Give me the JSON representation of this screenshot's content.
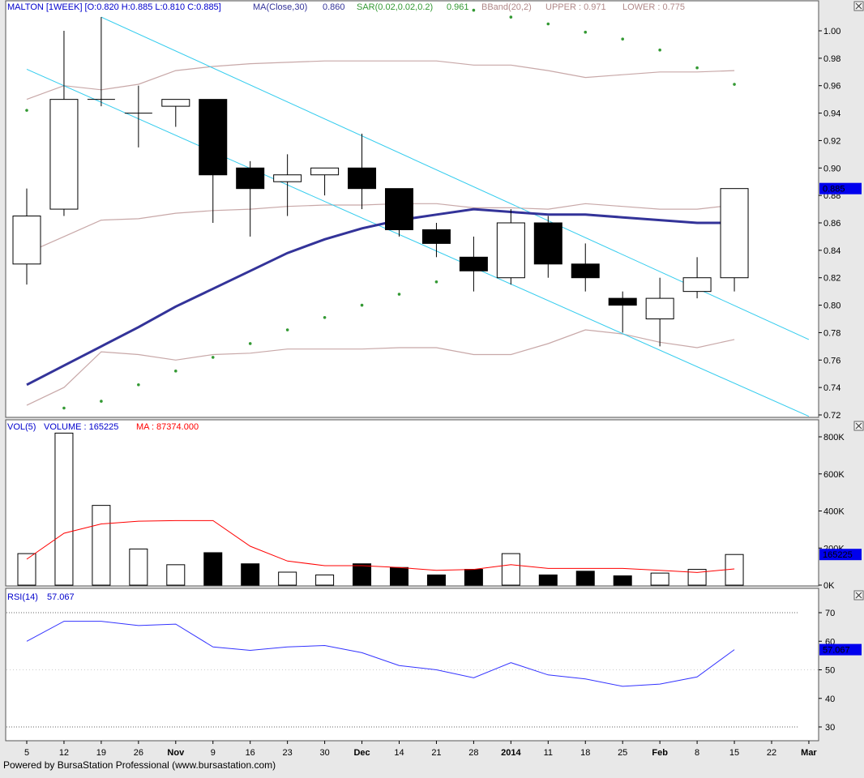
{
  "colors": {
    "background": "#e8e8e8",
    "panel": "#ffffff",
    "bullish_body": "#ffffff",
    "bearish_body": "#000000",
    "ma_line": "#333399",
    "bband_line": "#c8a8a8",
    "sar_dot": "#339933",
    "trendline": "#33ccee",
    "volume_ma": "#ff0000",
    "rsi_line": "#3333ff",
    "price_tag": "#0000ee"
  },
  "header": {
    "price_label": "MALTON [1WEEK] [O:0.820 H:0.885 L:0.810 C:0.885]",
    "ma_label": "MA(Close,30)",
    "ma_value": "0.860",
    "sar_label": "SAR(0.02,0.02,0.2)",
    "sar_value": "0.961",
    "bband_label": "BBand(20,2)",
    "upper_label": "UPPER : 0.971",
    "lower_label": "LOWER : 0.775",
    "vol_label": "VOL(5)",
    "volume_label": "VOLUME : 165225",
    "vol_ma_label": "MA : 87374.000",
    "rsi_label": "RSI(14)",
    "rsi_value": "57.067"
  },
  "footer": "Powered by BursaStation Professional (www.bursastation.com)",
  "chart_data": [
    {
      "type": "candlestick",
      "title": "MALTON [1WEEK]",
      "x_tick_labels": [
        "5",
        "12",
        "19",
        "26",
        "Nov",
        "9",
        "16",
        "23",
        "30",
        "Dec",
        "14",
        "21",
        "28",
        "2014",
        "11",
        "18",
        "25",
        "Feb",
        "8",
        "15",
        "22",
        "Mar"
      ],
      "ylim": [
        0.72,
        1.01
      ],
      "y_ticks": [
        0.72,
        0.74,
        0.76,
        0.78,
        0.8,
        0.82,
        0.84,
        0.86,
        0.88,
        0.9,
        0.92,
        0.94,
        0.96,
        0.98,
        1.0
      ],
      "last_price_tag": "0.885",
      "candles": [
        {
          "x": "5",
          "open": 0.83,
          "high": 0.885,
          "low": 0.815,
          "close": 0.865
        },
        {
          "x": "12",
          "open": 0.87,
          "high": 1.0,
          "low": 0.865,
          "close": 0.95
        },
        {
          "x": "19",
          "open": 0.95,
          "high": 1.01,
          "low": 0.945,
          "close": 0.95
        },
        {
          "x": "26",
          "open": 0.94,
          "high": 0.96,
          "low": 0.915,
          "close": 0.94
        },
        {
          "x": "Nov",
          "open": 0.945,
          "high": 0.95,
          "low": 0.93,
          "close": 0.95
        },
        {
          "x": "9",
          "open": 0.95,
          "high": 0.95,
          "low": 0.86,
          "close": 0.895
        },
        {
          "x": "16",
          "open": 0.9,
          "high": 0.905,
          "low": 0.85,
          "close": 0.885
        },
        {
          "x": "23",
          "open": 0.89,
          "high": 0.91,
          "low": 0.865,
          "close": 0.895
        },
        {
          "x": "30",
          "open": 0.895,
          "high": 0.9,
          "low": 0.88,
          "close": 0.9
        },
        {
          "x": "Dec",
          "open": 0.9,
          "high": 0.925,
          "low": 0.87,
          "close": 0.885
        },
        {
          "x": "14",
          "open": 0.885,
          "high": 0.885,
          "low": 0.85,
          "close": 0.855
        },
        {
          "x": "21",
          "open": 0.855,
          "high": 0.86,
          "low": 0.835,
          "close": 0.845
        },
        {
          "x": "28",
          "open": 0.835,
          "high": 0.85,
          "low": 0.81,
          "close": 0.825
        },
        {
          "x": "2014",
          "open": 0.82,
          "high": 0.87,
          "low": 0.815,
          "close": 0.86
        },
        {
          "x": "11",
          "open": 0.86,
          "high": 0.865,
          "low": 0.82,
          "close": 0.83
        },
        {
          "x": "18",
          "open": 0.83,
          "high": 0.845,
          "low": 0.81,
          "close": 0.82
        },
        {
          "x": "25",
          "open": 0.805,
          "high": 0.81,
          "low": 0.78,
          "close": 0.8
        },
        {
          "x": "Feb",
          "open": 0.79,
          "high": 0.82,
          "low": 0.77,
          "close": 0.805
        },
        {
          "x": "8",
          "open": 0.81,
          "high": 0.835,
          "low": 0.805,
          "close": 0.82
        },
        {
          "x": "15",
          "open": 0.82,
          "high": 0.885,
          "low": 0.81,
          "close": 0.885
        }
      ],
      "series": [
        {
          "name": "MA(Close,30)",
          "values": [
            0.742,
            0.756,
            0.77,
            0.784,
            0.799,
            0.812,
            0.825,
            0.838,
            0.848,
            0.856,
            0.862,
            0.866,
            0.87,
            0.868,
            0.866,
            0.866,
            0.864,
            0.862,
            0.86,
            0.86
          ]
        },
        {
          "name": "UPPER",
          "values": [
            0.95,
            0.96,
            0.957,
            0.961,
            0.971,
            0.974,
            0.976,
            0.977,
            0.978,
            0.978,
            0.978,
            0.978,
            0.975,
            0.975,
            0.971,
            0.966,
            0.968,
            0.97,
            0.97,
            0.971
          ]
        },
        {
          "name": "MIDDLE",
          "values": [
            0.838,
            0.85,
            0.862,
            0.863,
            0.867,
            0.869,
            0.87,
            0.872,
            0.873,
            0.873,
            0.874,
            0.874,
            0.871,
            0.871,
            0.87,
            0.874,
            0.872,
            0.87,
            0.87,
            0.873
          ]
        },
        {
          "name": "LOWER",
          "values": [
            0.727,
            0.74,
            0.766,
            0.764,
            0.76,
            0.764,
            0.765,
            0.768,
            0.768,
            0.768,
            0.769,
            0.769,
            0.764,
            0.764,
            0.772,
            0.782,
            0.779,
            0.773,
            0.769,
            0.775
          ]
        },
        {
          "name": "SAR",
          "values": [
            0.942,
            0.725,
            0.73,
            0.742,
            0.752,
            0.762,
            0.772,
            0.782,
            0.791,
            0.8,
            0.808,
            0.817,
            1.015,
            1.01,
            1.005,
            0.999,
            0.994,
            0.986,
            0.973,
            0.961
          ]
        }
      ],
      "trendlines": [
        {
          "from": {
            "x": "5",
            "y": 0.972
          },
          "to": {
            "x": "Mar",
            "y": 0.719
          }
        },
        {
          "from": {
            "x": "19",
            "y": 1.01
          },
          "to": {
            "x": "Mar",
            "y": 0.775
          }
        }
      ]
    },
    {
      "type": "bar",
      "title": "VOL(5)",
      "categories": [
        "5",
        "12",
        "19",
        "26",
        "Nov",
        "9",
        "16",
        "23",
        "30",
        "Dec",
        "14",
        "21",
        "28",
        "2014",
        "11",
        "18",
        "25",
        "Feb",
        "8",
        "15"
      ],
      "series": [
        {
          "name": "VOLUME",
          "values": [
            170000,
            820000,
            430000,
            195000,
            110000,
            175000,
            115000,
            70000,
            55000,
            115000,
            95000,
            55000,
            85000,
            170000,
            55000,
            75000,
            50000,
            65000,
            85000,
            165225
          ]
        },
        {
          "name": "MA",
          "values": [
            140000,
            280000,
            330000,
            345000,
            348000,
            348000,
            210000,
            130000,
            105000,
            105000,
            95000,
            80000,
            85000,
            110000,
            90000,
            90000,
            90000,
            80000,
            68000,
            87374
          ]
        }
      ],
      "ylim": [
        0,
        830000
      ],
      "y_tick_labels": [
        "0K",
        "200K",
        "400K",
        "600K",
        "800K"
      ],
      "y_tick_values": [
        0,
        200000,
        400000,
        600000,
        800000
      ],
      "last_value_tag": "165225"
    },
    {
      "type": "line",
      "title": "RSI(14)",
      "categories": [
        "5",
        "12",
        "19",
        "26",
        "Nov",
        "9",
        "16",
        "23",
        "30",
        "Dec",
        "14",
        "21",
        "28",
        "2014",
        "11",
        "18",
        "25",
        "Feb",
        "8",
        "15"
      ],
      "series": [
        {
          "name": "RSI(14)",
          "values": [
            60.0,
            67.0,
            67.0,
            65.5,
            66.0,
            58.0,
            56.8,
            58.0,
            58.5,
            56.0,
            51.5,
            50.0,
            47.2,
            52.5,
            48.2,
            46.8,
            44.2,
            45.0,
            47.5,
            57.067
          ]
        }
      ],
      "ylim": [
        25,
        74
      ],
      "y_ticks": [
        30,
        40,
        50,
        60,
        70
      ],
      "reference_lines": [
        30,
        70
      ],
      "last_value_tag": "57.067"
    }
  ]
}
